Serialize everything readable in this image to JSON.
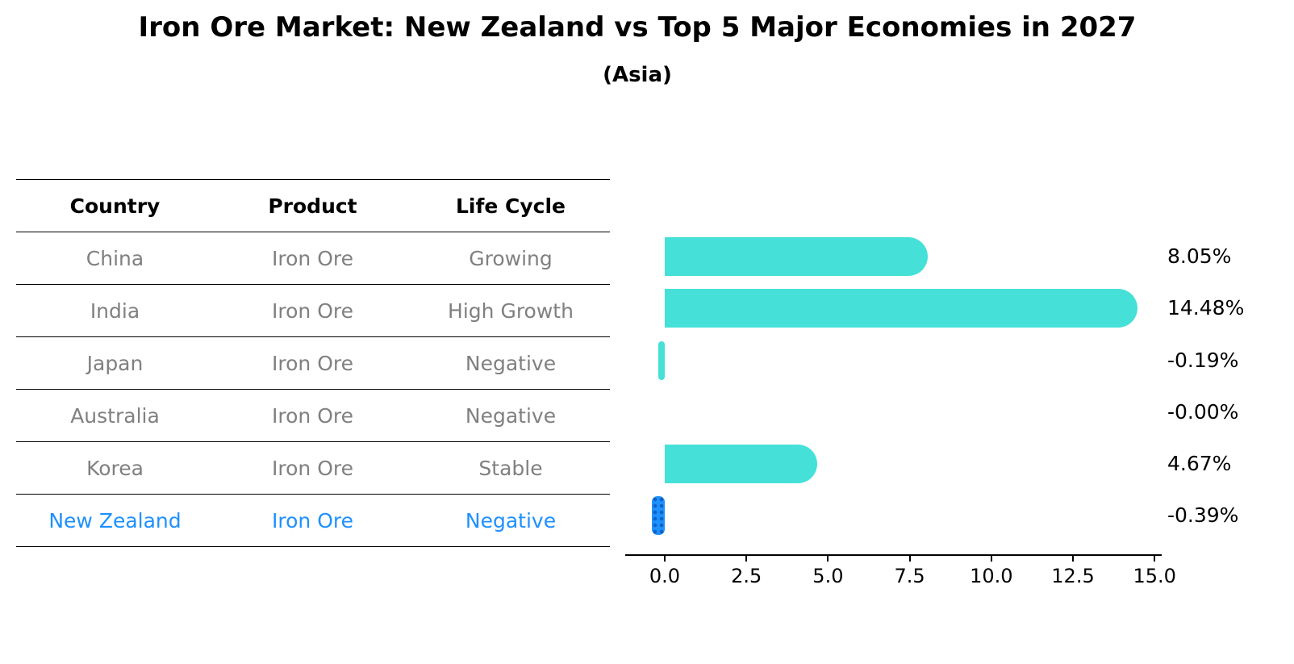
{
  "header": {
    "title": "Iron Ore Market: New Zealand vs Top 5 Major Economies in 2027",
    "subtitle": "(Asia)"
  },
  "table": {
    "columns": [
      "Country",
      "Product",
      "Life Cycle"
    ],
    "rows": [
      {
        "country": "China",
        "product": "Iron Ore",
        "life_cycle": "Growing",
        "highlight": false
      },
      {
        "country": "India",
        "product": "Iron Ore",
        "life_cycle": "High Growth",
        "highlight": false
      },
      {
        "country": "Japan",
        "product": "Iron Ore",
        "life_cycle": "Negative",
        "highlight": false
      },
      {
        "country": "Australia",
        "product": "Iron Ore",
        "life_cycle": "Negative",
        "highlight": false
      },
      {
        "country": "Korea",
        "product": "Iron Ore",
        "life_cycle": "Stable",
        "highlight": false
      },
      {
        "country": "New Zealand",
        "product": "Iron Ore",
        "life_cycle": "Negative",
        "highlight": true
      }
    ]
  },
  "chart_data": {
    "type": "bar",
    "orientation": "horizontal",
    "title": "Iron Ore Market: New Zealand vs Top 5 Major Economies in 2027 (Asia)",
    "categories": [
      "China",
      "India",
      "Japan",
      "Australia",
      "Korea",
      "New Zealand"
    ],
    "values": [
      8.05,
      14.48,
      -0.19,
      -0.0,
      4.67,
      -0.39
    ],
    "value_labels": [
      "8.05%",
      "14.48%",
      "-0.19%",
      "-0.00%",
      "4.67%",
      "-0.39%"
    ],
    "x_tick_labels": [
      "0.0",
      "2.5",
      "5.0",
      "7.5",
      "10.0",
      "12.5",
      "15.0"
    ],
    "x_tick_values": [
      0,
      2.5,
      5,
      7.5,
      10,
      12.5,
      15
    ],
    "xlim": [
      -1.2,
      15.35
    ],
    "grid": false,
    "legend": "none",
    "bar_color": "#45E0D8",
    "highlight_color": "#1E90FF",
    "highlight_index": 5
  }
}
